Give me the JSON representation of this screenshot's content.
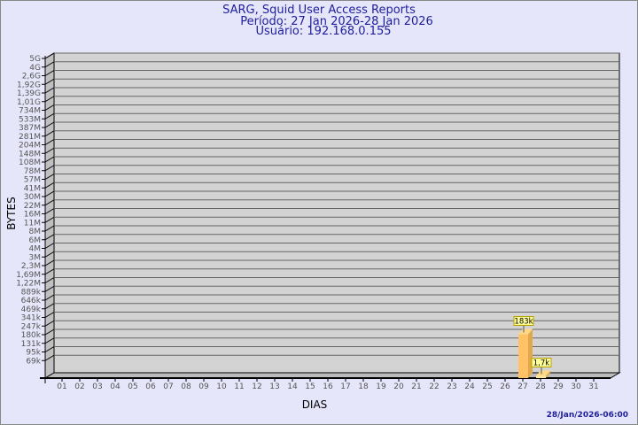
{
  "chart_data": {
    "type": "bar",
    "title": "SARG, Squid User Access Reports",
    "subtitle": [
      "Período: 27 Jan 2026-28 Jan 2026",
      "Usuário: 192.168.0.155"
    ],
    "xlabel": "DIAS",
    "ylabel": "BYTES",
    "yscale": "log",
    "yticks": [
      "5G",
      "4G",
      "2,6G",
      "1,92G",
      "1,39G",
      "1,01G",
      "734M",
      "533M",
      "387M",
      "281M",
      "204M",
      "148M",
      "108M",
      "78M",
      "57M",
      "41M",
      "30M",
      "22M",
      "16M",
      "11M",
      "8M",
      "6M",
      "4M",
      "3M",
      "2,3M",
      "1,69M",
      "1,22M",
      "889k",
      "646k",
      "469k",
      "341k",
      "247k",
      "180k",
      "131k",
      "95k",
      "69k"
    ],
    "categories": [
      "01",
      "02",
      "03",
      "04",
      "05",
      "06",
      "07",
      "08",
      "09",
      "10",
      "11",
      "12",
      "13",
      "14",
      "15",
      "16",
      "17",
      "18",
      "19",
      "20",
      "21",
      "22",
      "23",
      "24",
      "25",
      "26",
      "27",
      "28",
      "29",
      "30",
      "31"
    ],
    "bars": [
      {
        "category": "27",
        "value": 183000,
        "label": "183k",
        "color": "#ffc266"
      },
      {
        "category": "28",
        "value": 1700,
        "label": "1,7k",
        "color": "#ffe699"
      }
    ],
    "grid": true
  },
  "footer": {
    "timestamp": "28/Jan/2026-06:00"
  },
  "colors": {
    "wall": "#d3d3d3",
    "side": "#c0c0c0",
    "title": "#1e1e9c"
  }
}
